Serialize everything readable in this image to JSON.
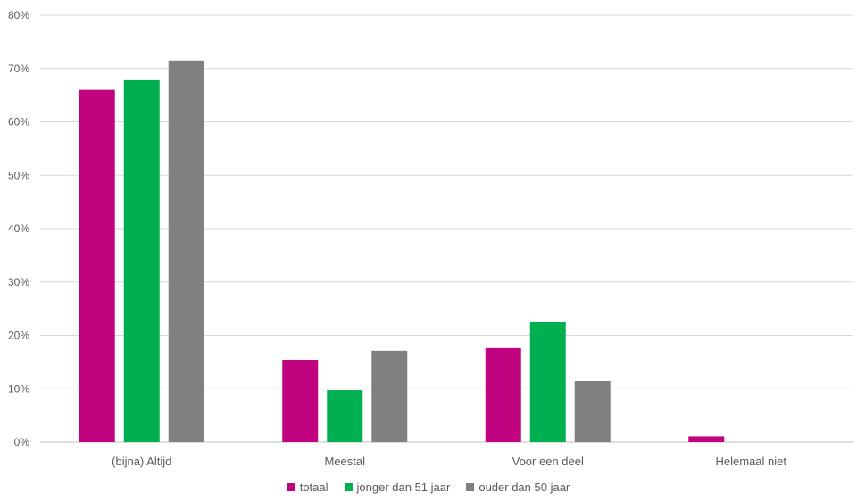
{
  "chart_data": {
    "type": "bar",
    "categories": [
      "(bijna) Altijd",
      "Meestal",
      "Voor een deel",
      "Helemaal niet"
    ],
    "series": [
      {
        "name": "totaal",
        "color": "#c0037e",
        "values": [
          66,
          15.4,
          17.6,
          1.1
        ]
      },
      {
        "name": "jonger dan 51 jaar",
        "color": "#00b050",
        "values": [
          67.8,
          9.7,
          22.6,
          0
        ]
      },
      {
        "name": "ouder dan 50 jaar",
        "color": "#808080",
        "values": [
          71.5,
          17.1,
          11.4,
          0
        ]
      }
    ],
    "yticks": [
      "0%",
      "10%",
      "20%",
      "30%",
      "40%",
      "50%",
      "60%",
      "70%",
      "80%"
    ],
    "ylim": [
      0,
      80
    ],
    "grid": true,
    "legend_position": "bottom"
  }
}
